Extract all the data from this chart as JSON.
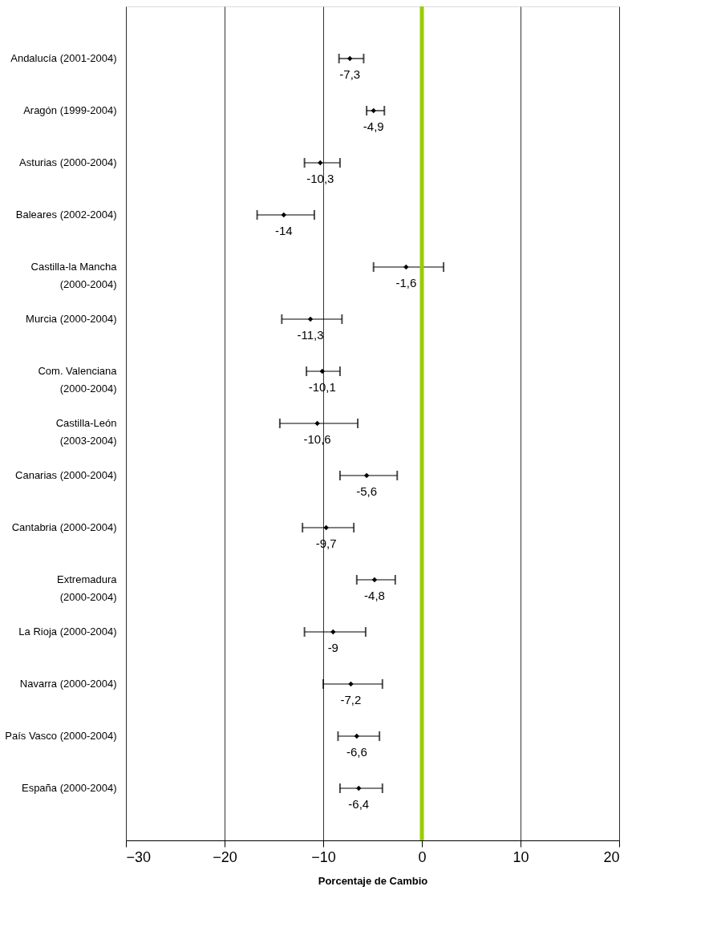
{
  "chart_data": {
    "type": "scatter",
    "orientation": "horizontal",
    "xlabel": "Porcentaje de Cambio",
    "categories": [
      "Andalucía (2001-2004)",
      "Aragón (1999-2004)",
      "Asturias (2000-2004)",
      "Baleares (2002-2004)",
      "Castilla-la Mancha (2000-2004)",
      "Murcia (2000-2004)",
      "Com. Valenciana (2000-2004)",
      "Castilla-León (2003-2004)",
      "Canarias (2000-2004)",
      "Cantabria (2000-2004)",
      "Extremadura (2000-2004)",
      "La Rioja (2000-2004)",
      "Navarra (2000-2004)",
      "País Vasco (2000-2004)",
      "España (2000-2004)"
    ],
    "values": [
      -7.3,
      -4.9,
      -10.3,
      -14,
      -1.6,
      -11.3,
      -10.1,
      -10.6,
      -5.6,
      -9.7,
      -4.8,
      -9,
      -7.2,
      -6.6,
      -6.4
    ],
    "errors": [
      [
        -8.4,
        -5.9
      ],
      [
        -5.6,
        -3.8
      ],
      [
        -11.9,
        -8.3
      ],
      [
        -16.7,
        -10.9
      ],
      [
        -4.9,
        2.2
      ],
      [
        -14.2,
        -8.1
      ],
      [
        -11.7,
        -8.3
      ],
      [
        -14.4,
        -6.5
      ],
      [
        -8.3,
        -2.5
      ],
      [
        -12.1,
        -6.9
      ],
      [
        -6.6,
        -2.7
      ],
      [
        -11.9,
        -5.7
      ],
      [
        -10.0,
        -4.0
      ],
      [
        -8.5,
        -4.3
      ],
      [
        -8.3,
        -4.0
      ]
    ],
    "value_labels": [
      "-7,3",
      "-4,9",
      "-10,3",
      "-14",
      "-1,6",
      "-11,3",
      "-10,1",
      "-10,6",
      "-5,6",
      "-9,7",
      "-4,8",
      "-9",
      "-7,2",
      "-6,6",
      "-6,4"
    ],
    "color": "#000000",
    "marker": "diamond",
    "xlim": [
      -30,
      20
    ],
    "xticks": [
      -30,
      -20,
      -10,
      0,
      10,
      20
    ],
    "grid": "x",
    "ref_lines": [
      {
        "axis": "x",
        "value": 0,
        "color": "#99cc00"
      }
    ]
  }
}
